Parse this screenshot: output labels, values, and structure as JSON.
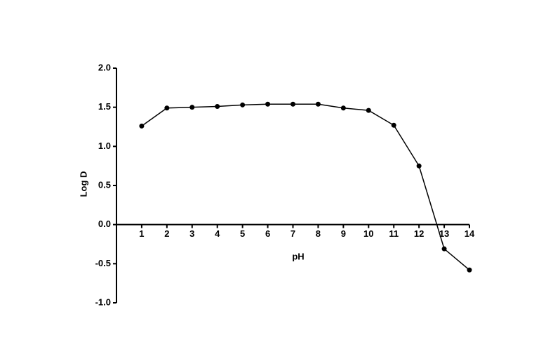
{
  "chart_data": {
    "type": "line",
    "x_label": "pH",
    "y_label": "Log D",
    "x": [
      1,
      2,
      3,
      4,
      5,
      6,
      7,
      8,
      9,
      10,
      11,
      12,
      13,
      14
    ],
    "values": [
      1.26,
      1.49,
      1.5,
      1.51,
      1.53,
      1.54,
      1.54,
      1.54,
      1.49,
      1.46,
      1.27,
      0.75,
      -0.31,
      -0.58
    ],
    "color": "#000000",
    "xlim": [
      0,
      14
    ],
    "xticks": [
      1,
      2,
      3,
      4,
      5,
      6,
      7,
      8,
      9,
      10,
      11,
      12,
      13,
      14
    ],
    "ylim": [
      -1,
      2
    ],
    "yticks": [
      {
        "value": -1,
        "label": "-1.0"
      },
      {
        "value": -0.5,
        "label": "-0.5"
      },
      {
        "value": 0,
        "label": "0.0"
      },
      {
        "value": 0.5,
        "label": "0.5"
      },
      {
        "value": 1,
        "label": "1.0"
      },
      {
        "value": 1.5,
        "label": "1.5"
      },
      {
        "value": 2,
        "label": "2.0"
      }
    ],
    "grid": false
  }
}
